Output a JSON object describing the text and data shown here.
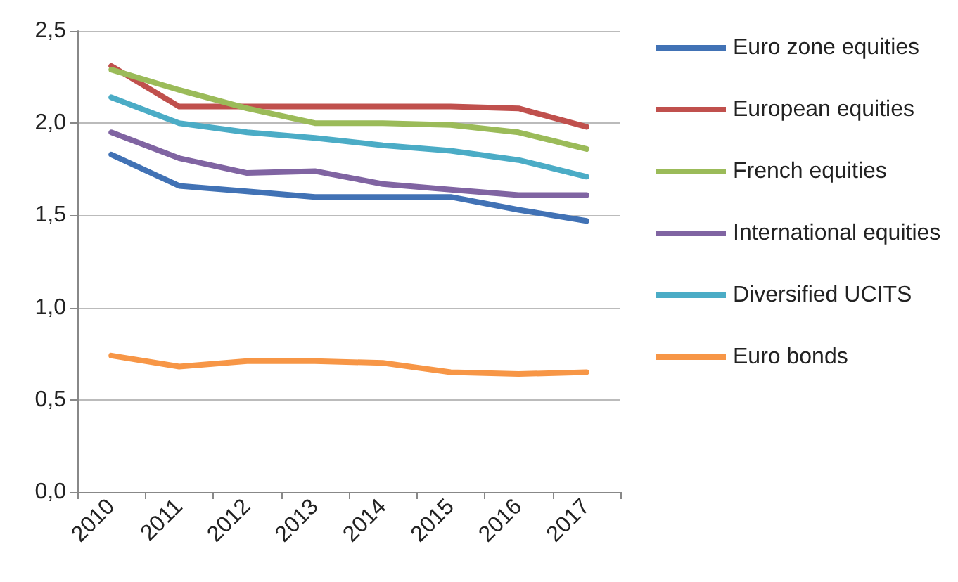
{
  "chart_data": {
    "type": "line",
    "categories": [
      "2010",
      "2011",
      "2012",
      "2013",
      "2014",
      "2015",
      "2016",
      "2017"
    ],
    "series": [
      {
        "name": "Euro zone equities",
        "color": "#4172b5",
        "values": [
          1.83,
          1.66,
          1.63,
          1.6,
          1.6,
          1.6,
          1.53,
          1.47
        ]
      },
      {
        "name": "European equities",
        "color": "#c0504d",
        "values": [
          2.31,
          2.09,
          2.09,
          2.09,
          2.09,
          2.09,
          2.08,
          1.98
        ]
      },
      {
        "name": "French equities",
        "color": "#9bbb59",
        "values": [
          2.29,
          2.18,
          2.08,
          2.0,
          2.0,
          1.99,
          1.95,
          1.86
        ]
      },
      {
        "name": "International equities",
        "color": "#8064a2",
        "values": [
          1.95,
          1.81,
          1.73,
          1.74,
          1.67,
          1.64,
          1.61,
          1.61
        ]
      },
      {
        "name": "Diversified UCITS",
        "color": "#4bacc6",
        "values": [
          2.14,
          2.0,
          1.95,
          1.92,
          1.88,
          1.85,
          1.8,
          1.71
        ]
      },
      {
        "name": "Euro bonds",
        "color": "#f79646",
        "values": [
          0.74,
          0.68,
          0.71,
          0.71,
          0.7,
          0.65,
          0.64,
          0.65
        ]
      }
    ],
    "ylim": [
      0,
      2.5
    ],
    "yticks": [
      {
        "value": 0,
        "label": "0,0"
      },
      {
        "value": 0.5,
        "label": "0,5"
      },
      {
        "value": 1,
        "label": "1,0"
      },
      {
        "value": 1.5,
        "label": "1,5"
      },
      {
        "value": 2,
        "label": "2,0"
      },
      {
        "value": 2.5,
        "label": "2,5"
      }
    ],
    "grid": "y",
    "legend": "right",
    "marker": "none",
    "line_style": "solid"
  }
}
